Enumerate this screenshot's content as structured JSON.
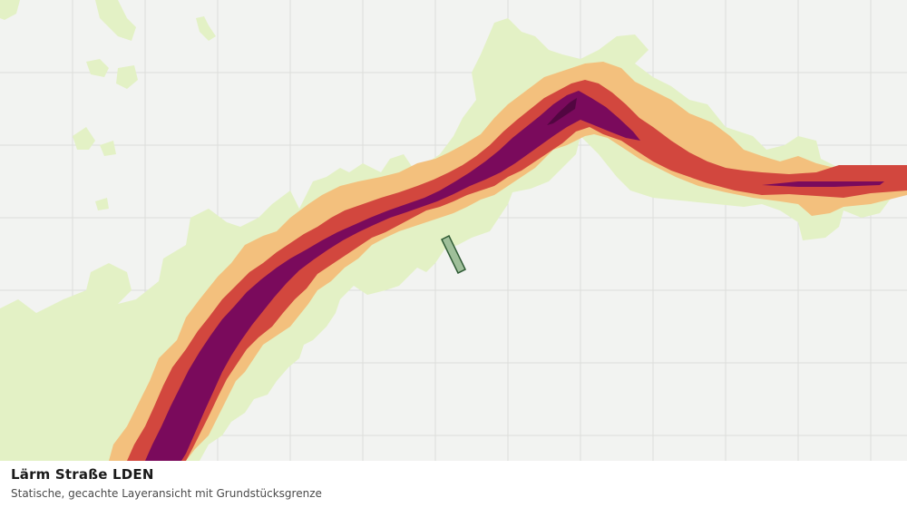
{
  "layer": {
    "title": "Lärm Straße LDEN",
    "subtitle": "Statische, gecachte Layeransicht mit Grundstücksgrenze"
  },
  "colors": {
    "background": "#f2f3f1",
    "grid": "#dcdedb",
    "band_light": "#e3f1c5",
    "band_orange": "#f3c07d",
    "band_red": "#d2473e",
    "band_purple": "#7a0a5c",
    "band_darkpurple": "#520641",
    "parcel_fill": "#9fbf9a",
    "parcel_stroke": "#2e5a34"
  }
}
